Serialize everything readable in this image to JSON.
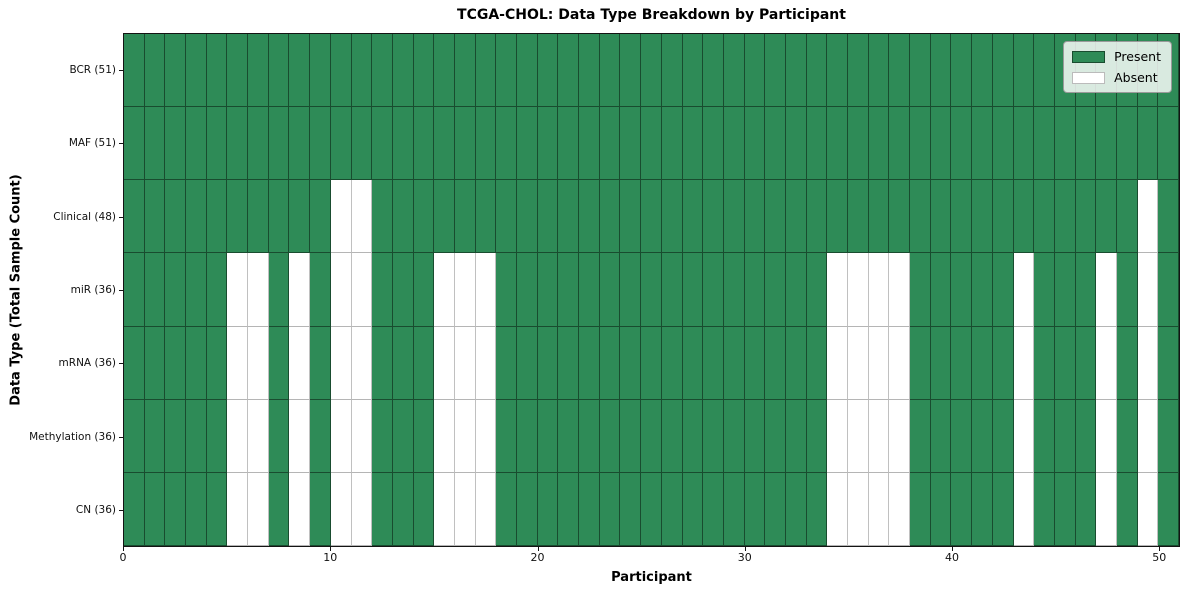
{
  "chart_data": {
    "type": "heatmap",
    "title": "TCGA-CHOL: Data Type Breakdown by Participant",
    "xlabel": "Participant",
    "ylabel": "Data Type (Total Sample Count)",
    "n_participants": 51,
    "xlim": [
      0,
      51
    ],
    "x_ticks": [
      0,
      10,
      20,
      30,
      40,
      50
    ],
    "grid": true,
    "legend_position": "upper right",
    "colors": {
      "present": "#2e8b57",
      "absent": "#ffffff"
    },
    "legend": [
      {
        "label": "Present",
        "color": "#2e8b57"
      },
      {
        "label": "Absent",
        "color": "#ffffff"
      }
    ],
    "rows": [
      {
        "label": "BCR (51)",
        "total": 51,
        "absent_participants": []
      },
      {
        "label": "MAF (51)",
        "total": 51,
        "absent_participants": []
      },
      {
        "label": "Clinical (48)",
        "total": 48,
        "absent_participants": [
          10,
          11,
          49
        ]
      },
      {
        "label": "miR (36)",
        "total": 36,
        "absent_participants": [
          5,
          6,
          8,
          10,
          11,
          15,
          16,
          17,
          34,
          35,
          36,
          37,
          43,
          47,
          49
        ]
      },
      {
        "label": "mRNA (36)",
        "total": 36,
        "absent_participants": [
          5,
          6,
          8,
          10,
          11,
          15,
          16,
          17,
          34,
          35,
          36,
          37,
          43,
          47,
          49
        ]
      },
      {
        "label": "Methylation (36)",
        "total": 36,
        "absent_participants": [
          5,
          6,
          8,
          10,
          11,
          15,
          16,
          17,
          34,
          35,
          36,
          37,
          43,
          47,
          49
        ]
      },
      {
        "label": "CN (36)",
        "total": 36,
        "absent_participants": [
          5,
          6,
          8,
          10,
          11,
          15,
          16,
          17,
          34,
          35,
          36,
          37,
          43,
          47,
          49
        ]
      }
    ]
  }
}
